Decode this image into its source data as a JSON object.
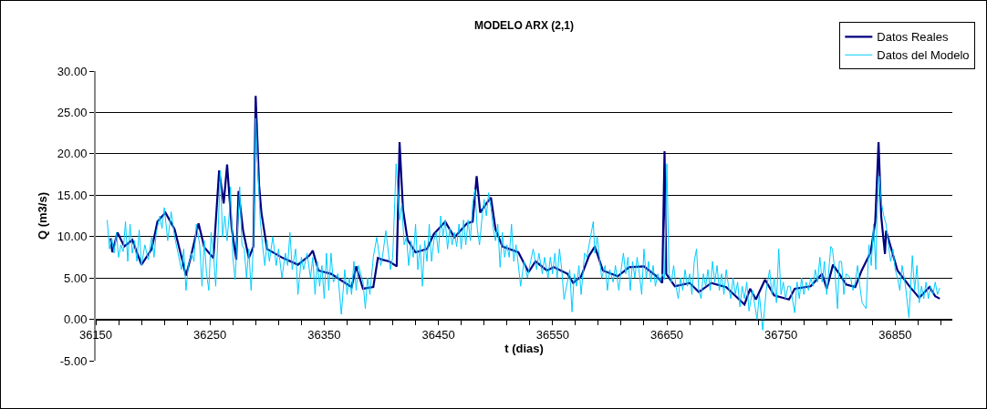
{
  "chart_data": {
    "type": "line",
    "title": "MODELO ARX (2,1)",
    "xlabel": "t (dias)",
    "ylabel": "Q (m3/s)",
    "xlim": [
      36150,
      36900
    ],
    "xticks": [
      36150,
      {
        "value": 36170,
        "label": null
      },
      {
        "value": 36190,
        "label": null
      },
      {
        "value": 36210,
        "label": null
      },
      {
        "value": 36230,
        "label": null
      },
      36250,
      {
        "value": 36270,
        "label": null
      },
      {
        "value": 36290,
        "label": null
      },
      {
        "value": 36310,
        "label": null
      },
      {
        "value": 36330,
        "label": null
      },
      36350,
      {
        "value": 36370,
        "label": null
      },
      {
        "value": 36390,
        "label": null
      },
      {
        "value": 36410,
        "label": null
      },
      {
        "value": 36430,
        "label": null
      },
      36450,
      {
        "value": 36470,
        "label": null
      },
      {
        "value": 36490,
        "label": null
      },
      {
        "value": 36510,
        "label": null
      },
      {
        "value": 36530,
        "label": null
      },
      36550,
      {
        "value": 36570,
        "label": null
      },
      {
        "value": 36590,
        "label": null
      },
      {
        "value": 36610,
        "label": null
      },
      {
        "value": 36630,
        "label": null
      },
      36650,
      {
        "value": 36670,
        "label": null
      },
      {
        "value": 36690,
        "label": null
      },
      {
        "value": 36710,
        "label": null
      },
      {
        "value": 36730,
        "label": null
      },
      36750,
      {
        "value": 36770,
        "label": null
      },
      {
        "value": 36790,
        "label": null
      },
      {
        "value": 36810,
        "label": null
      },
      {
        "value": 36830,
        "label": null
      },
      36850,
      {
        "value": 36870,
        "label": null
      },
      {
        "value": 36890,
        "label": null
      }
    ],
    "ylim": [
      -5,
      30
    ],
    "yticks": [
      {
        "value": -5,
        "label": "-5.00"
      },
      {
        "value": 0,
        "label": "0.00"
      },
      {
        "value": 5,
        "label": "5.00"
      },
      {
        "value": 10,
        "label": "10.00"
      },
      {
        "value": 15,
        "label": "15.00"
      },
      {
        "value": 20,
        "label": "20.00"
      },
      {
        "value": 25,
        "label": "25.00"
      },
      {
        "value": 30,
        "label": "30.00"
      }
    ],
    "grid": "y",
    "legend": "top right",
    "series": [
      {
        "name": "Datos Reales",
        "color": "#000080",
        "x": [
          36163,
          36164.5,
          36169,
          36175,
          36182,
          36190,
          36199,
          36204,
          36211,
          36219,
          36224,
          36229,
          36233,
          36240,
          36245,
          36253,
          36258,
          36262,
          36265,
          36269,
          36273,
          36275,
          36279,
          36284,
          36288,
          36290,
          36293,
          36295,
          36300,
          36314,
          36327,
          36337,
          36340,
          36345,
          36356,
          36374,
          36378,
          36384,
          36393,
          36397,
          36401,
          36407,
          36413.5,
          36416,
          36419,
          36423,
          36430,
          36440,
          36446,
          36456,
          36464,
          36475,
          36480,
          36483.5,
          36486.6,
          36492,
          36496,
          36500,
          36506,
          36520,
          36529,
          36535,
          36545,
          36551,
          36563,
          36568,
          36575,
          36582,
          36587,
          36594,
          36607,
          36617,
          36630,
          36641,
          36646,
          36648,
          36649.5,
          36657,
          36670,
          36678,
          36689,
          36702,
          36718,
          36723,
          36728,
          36736,
          36744,
          36757,
          36762,
          36776,
          36786,
          36790,
          36795.5,
          36801,
          36807,
          36815,
          36820.6,
          36828.5,
          36832.5,
          36835.4,
          36837.7,
          36841,
          36842,
          36852,
          36863,
          36871,
          36880,
          36885,
          36889
        ],
        "values": [
          9.8,
          8.1,
          10.5,
          8.8,
          9.6,
          6.6,
          8.5,
          11.8,
          12.9,
          10.9,
          8.1,
          5.3,
          7.4,
          11.6,
          8.7,
          7.4,
          18.0,
          14.0,
          18.7,
          11.0,
          7.2,
          15.5,
          10.7,
          7.4,
          8.8,
          27.0,
          16.2,
          12.9,
          8.5,
          7.4,
          6.6,
          7.7,
          8.3,
          5.9,
          5.5,
          3.9,
          6.4,
          3.7,
          3.9,
          7.4,
          7.2,
          7.0,
          6.4,
          21.4,
          13.3,
          9.6,
          8.1,
          8.5,
          10.3,
          11.8,
          9.9,
          11.6,
          11.8,
          17.3,
          12.9,
          14.0,
          14.7,
          10.9,
          8.8,
          8.1,
          5.7,
          7.0,
          5.9,
          6.3,
          5.5,
          4.4,
          5.2,
          7.7,
          8.8,
          5.9,
          5.2,
          6.3,
          6.4,
          5.2,
          4.4,
          20.3,
          5.5,
          4.0,
          4.4,
          3.3,
          4.4,
          3.9,
          1.8,
          3.7,
          2.4,
          4.8,
          2.9,
          2.4,
          3.7,
          4.0,
          5.5,
          3.7,
          6.6,
          5.5,
          4.2,
          3.9,
          5.9,
          8.1,
          11.8,
          21.4,
          12.5,
          7.9,
          10.7,
          5.9,
          3.9,
          2.6,
          3.9,
          2.8,
          2.5
        ]
      },
      {
        "name": "Datos del Modelo",
        "color": "#00ccff",
        "x": [
          36160,
          36162,
          36164,
          36166,
          36168,
          36170,
          36172,
          36174,
          36176,
          36178,
          36180,
          36182,
          36184,
          36186,
          36188,
          36190,
          36193,
          36196,
          36199,
          36201,
          36203,
          36206,
          36208,
          36210,
          36213,
          36216,
          36219,
          36222,
          36225,
          36227,
          36229,
          36231,
          36234,
          36236,
          36238,
          36241,
          36243,
          36245,
          36247,
          36249,
          36251,
          36253,
          36255,
          36257,
          36259,
          36261,
          36263,
          36265,
          36267,
          36268,
          36270,
          36272,
          36274,
          36276,
          36278,
          36280,
          36282,
          36284,
          36286,
          36288,
          36290,
          36292,
          36294,
          36296,
          36298,
          36300,
          36302,
          36305,
          36308,
          36310,
          36313,
          36316,
          36318,
          36320,
          36322,
          36325,
          36327,
          36330,
          36332,
          36335,
          36338,
          36340,
          36342,
          36344,
          36346,
          36348,
          36350,
          36352,
          36354,
          36356,
          36358,
          36362,
          36365,
          36368,
          36370,
          36372,
          36374,
          36376,
          36378,
          36380,
          36384,
          36386,
          36388,
          36390,
          36393,
          36396,
          36399.5,
          36401,
          36404,
          36408,
          36410,
          36413,
          36416,
          36418,
          36420,
          36422,
          36424,
          36426,
          36428,
          36430,
          36432,
          36434,
          36436,
          36438,
          36440,
          36442,
          36444,
          36446,
          36448,
          36450,
          36452,
          36454,
          36456,
          36458,
          36460,
          36462,
          36464,
          36466,
          36468,
          36470,
          36472,
          36474,
          36476,
          36478,
          36480,
          36482,
          36484,
          36486,
          36488,
          36490,
          36492,
          36494,
          36496,
          36498,
          36500,
          36502,
          36504,
          36506,
          36508,
          36510,
          36512,
          36514,
          36516,
          36518,
          36520,
          36522,
          36525,
          36528,
          36530,
          36533,
          36536,
          36538,
          36541,
          36543,
          36546,
          36548,
          36550,
          36552,
          36554,
          36556,
          36558,
          36560,
          36565,
          36567,
          36569,
          36571,
          36573,
          36575,
          36578,
          36580,
          36585.6,
          36587,
          36589,
          36591,
          36593,
          36596,
          36598,
          36600,
          36603,
          36605,
          36608,
          36610,
          36612,
          36614,
          36616,
          36618,
          36620,
          36622,
          36624,
          36626,
          36628,
          36630,
          36632,
          36634,
          36636,
          36638,
          36640,
          36642,
          36644,
          36646,
          36648,
          36650,
          36652,
          36654,
          36656,
          36658,
          36660,
          36662,
          36664,
          36666,
          36668,
          36670,
          36672,
          36674,
          36676,
          36678,
          36680,
          36682,
          36684,
          36686,
          36688,
          36690,
          36692,
          36694,
          36696,
          36698,
          36700,
          36702,
          36704,
          36706,
          36708,
          36710,
          36712,
          36714,
          36716,
          36718,
          36720,
          36722,
          36725,
          36729,
          36731,
          36734,
          36737,
          36740,
          36742,
          36744,
          36746,
          36748,
          36750,
          36752,
          36754,
          36756,
          36758,
          36762,
          36764,
          36766,
          36768,
          36770,
          36772,
          36774,
          36776,
          36778,
          36780,
          36782,
          36784,
          36786,
          36788,
          36790,
          36793.6,
          36795,
          36797,
          36799.5,
          36801,
          36803,
          36805,
          36807,
          36811,
          36813,
          36815,
          36817,
          36819,
          36821,
          36824.5,
          36827,
          36829,
          36831,
          36833,
          36834,
          36836,
          36838,
          36840,
          36842,
          36844,
          36846,
          36848,
          36850,
          36852,
          36854,
          36856,
          36859,
          36862,
          36865,
          36867,
          36869,
          36871,
          36873,
          36875,
          36877,
          36879,
          36881,
          36883,
          36885,
          36887,
          36889
        ],
        "values": [
          12.0,
          8.5,
          9.8,
          8.0,
          10.5,
          7.5,
          9.0,
          8.2,
          11.8,
          7.0,
          11.5,
          8.0,
          9.5,
          7.0,
          10.8,
          6.5,
          9.0,
          7.2,
          10.0,
          7.5,
          10.5,
          12.5,
          11.0,
          13.5,
          9.5,
          13.0,
          10.0,
          8.0,
          6.0,
          8.5,
          3.5,
          6.5,
          8.0,
          7.0,
          11.5,
          9.0,
          4.0,
          9.5,
          5.5,
          3.5,
          10.5,
          8.0,
          4.0,
          10.0,
          18.0,
          10.0,
          12.5,
          9.5,
          13.0,
          16.0,
          7.5,
          4.8,
          10.5,
          16.0,
          9.0,
          8.5,
          5.0,
          8.5,
          3.5,
          9.0,
          24.3,
          18.0,
          12.0,
          9.0,
          6.5,
          9.5,
          7.0,
          10.0,
          6.5,
          8.5,
          5.0,
          8.0,
          6.5,
          10.5,
          6.0,
          8.5,
          3.0,
          7.5,
          6.0,
          8.0,
          5.0,
          7.5,
          3.0,
          7.0,
          4.0,
          6.5,
          2.5,
          8.0,
          3.5,
          8.0,
          4.5,
          5.5,
          0.6,
          6.0,
          3.0,
          5.0,
          3.0,
          7.0,
          3.5,
          6.5,
          4.5,
          1.3,
          5.0,
          3.0,
          7.5,
          9.9,
          6.5,
          7.5,
          10.7,
          6.0,
          7.5,
          18.8,
          12.0,
          14.0,
          9.0,
          10.0,
          6.5,
          9.5,
          7.5,
          11.5,
          6.0,
          9.0,
          4.0,
          9.5,
          7.0,
          11.5,
          7.0,
          9.5,
          10.5,
          8.0,
          12.5,
          10.0,
          12.0,
          8.5,
          11.0,
          9.0,
          10.5,
          8.8,
          11.5,
          8.5,
          12.0,
          9.0,
          12.0,
          9.5,
          14.0,
          15.7,
          11.0,
          9.0,
          12.0,
          14.5,
          12.5,
          15.3,
          13.5,
          11.0,
          9.5,
          11.5,
          6.3,
          10.5,
          7.5,
          9.0,
          7.5,
          11.5,
          7.0,
          9.0,
          6.5,
          4.0,
          7.0,
          5.0,
          6.5,
          8.5,
          6.0,
          8.0,
          5.5,
          7.5,
          5.0,
          7.5,
          5.5,
          8.0,
          5.0,
          8.5,
          6.0,
          2.4,
          6.0,
          0.9,
          5.5,
          4.0,
          6.5,
          3.0,
          8.0,
          7.5,
          11.8,
          8.0,
          10.0,
          7.5,
          5.0,
          6.5,
          3.5,
          6.0,
          4.5,
          6.5,
          3.5,
          6.0,
          8.0,
          5.5,
          7.5,
          3.5,
          7.0,
          5.0,
          7.5,
          5.5,
          3.0,
          8.5,
          5.0,
          7.0,
          4.5,
          6.5,
          4.0,
          5.5,
          4.5,
          5.5,
          4.8,
          18.8,
          5.5,
          4.5,
          6.5,
          4.0,
          2.5,
          5.0,
          3.5,
          6.0,
          4.0,
          5.5,
          3.0,
          7.0,
          8.5,
          3.5,
          2.5,
          5.5,
          4.0,
          6.0,
          3.5,
          7.0,
          4.5,
          6.5,
          3.5,
          5.5,
          3.0,
          6.0,
          4.0,
          2.5,
          5.0,
          3.0,
          4.5,
          1.5,
          4.0,
          2.5,
          4.5,
          1.0,
          3.5,
          0.0,
          3.0,
          -1.3,
          3.5,
          6.0,
          3.0,
          5.0,
          2.0,
          8.5,
          3.0,
          4.5,
          2.5,
          4.0,
          4.0,
          0.8,
          4.5,
          2.5,
          5.0,
          3.0,
          4.5,
          3.5,
          5.0,
          4.0,
          6.0,
          4.5,
          7.5,
          4.5,
          7.0,
          3.0,
          8.8,
          8.5,
          6.0,
          1.3,
          7.0,
          7.0,
          3.0,
          5.5,
          5.0,
          3.5,
          4.5,
          6.5,
          4.0,
          2.0,
          1.3,
          9.0,
          6.5,
          11.5,
          6.0,
          12.0,
          17.3,
          14.0,
          12.5,
          11.5,
          9.0,
          7.0,
          8.5,
          6.0,
          5.0,
          3.5,
          6.5,
          4.0,
          0.2,
          7.7,
          3.5,
          6.5,
          2.0,
          4.0,
          2.5,
          4.5,
          2.5,
          4.0,
          3.0,
          4.5,
          3.0,
          3.8
        ]
      }
    ]
  }
}
